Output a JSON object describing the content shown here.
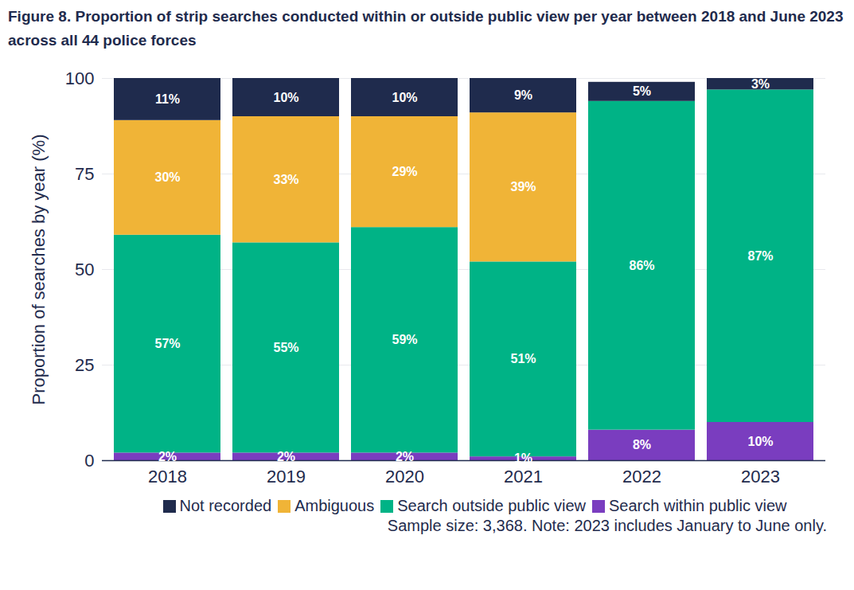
{
  "chart_data": {
    "type": "bar",
    "stacked": true,
    "title": "Figure 8. Proportion of strip searches conducted within or outside public view per year between 2018 and June 2023 across all 44 police forces",
    "y_label": "Proportion of searches by year (%)",
    "caption": "Sample size: 3,368. Note: 2023 includes January to June only.",
    "categories": [
      "2018",
      "2019",
      "2020",
      "2021",
      "2022",
      "2023"
    ],
    "ylim": [
      0,
      100
    ],
    "yticks": [
      0,
      25,
      50,
      75,
      100
    ],
    "grid": true,
    "legend": "bottom",
    "data_labels": true,
    "series": [
      {
        "name": "Search within public view",
        "color": "#7a3dbf",
        "values": [
          2,
          2,
          2,
          1,
          8,
          10
        ],
        "value_labels": [
          "2%",
          "2%",
          "2%",
          "1%",
          "8%",
          "10%"
        ]
      },
      {
        "name": "Search outside public view",
        "color": "#00b386",
        "values": [
          57,
          55,
          59,
          51,
          86,
          87
        ],
        "value_labels": [
          "57%",
          "55%",
          "59%",
          "51%",
          "86%",
          "87%"
        ]
      },
      {
        "name": "Ambiguous",
        "color": "#f0b437",
        "values": [
          30,
          33,
          29,
          39,
          null,
          null
        ],
        "value_labels": [
          "30%",
          "33%",
          "29%",
          "39%",
          null,
          null
        ]
      },
      {
        "name": "Not recorded",
        "color": "#1f2b4d",
        "values": [
          11,
          10,
          10,
          9,
          5,
          3
        ],
        "value_labels": [
          "11%",
          "10%",
          "10%",
          "9%",
          "5%",
          "3%"
        ]
      }
    ]
  }
}
